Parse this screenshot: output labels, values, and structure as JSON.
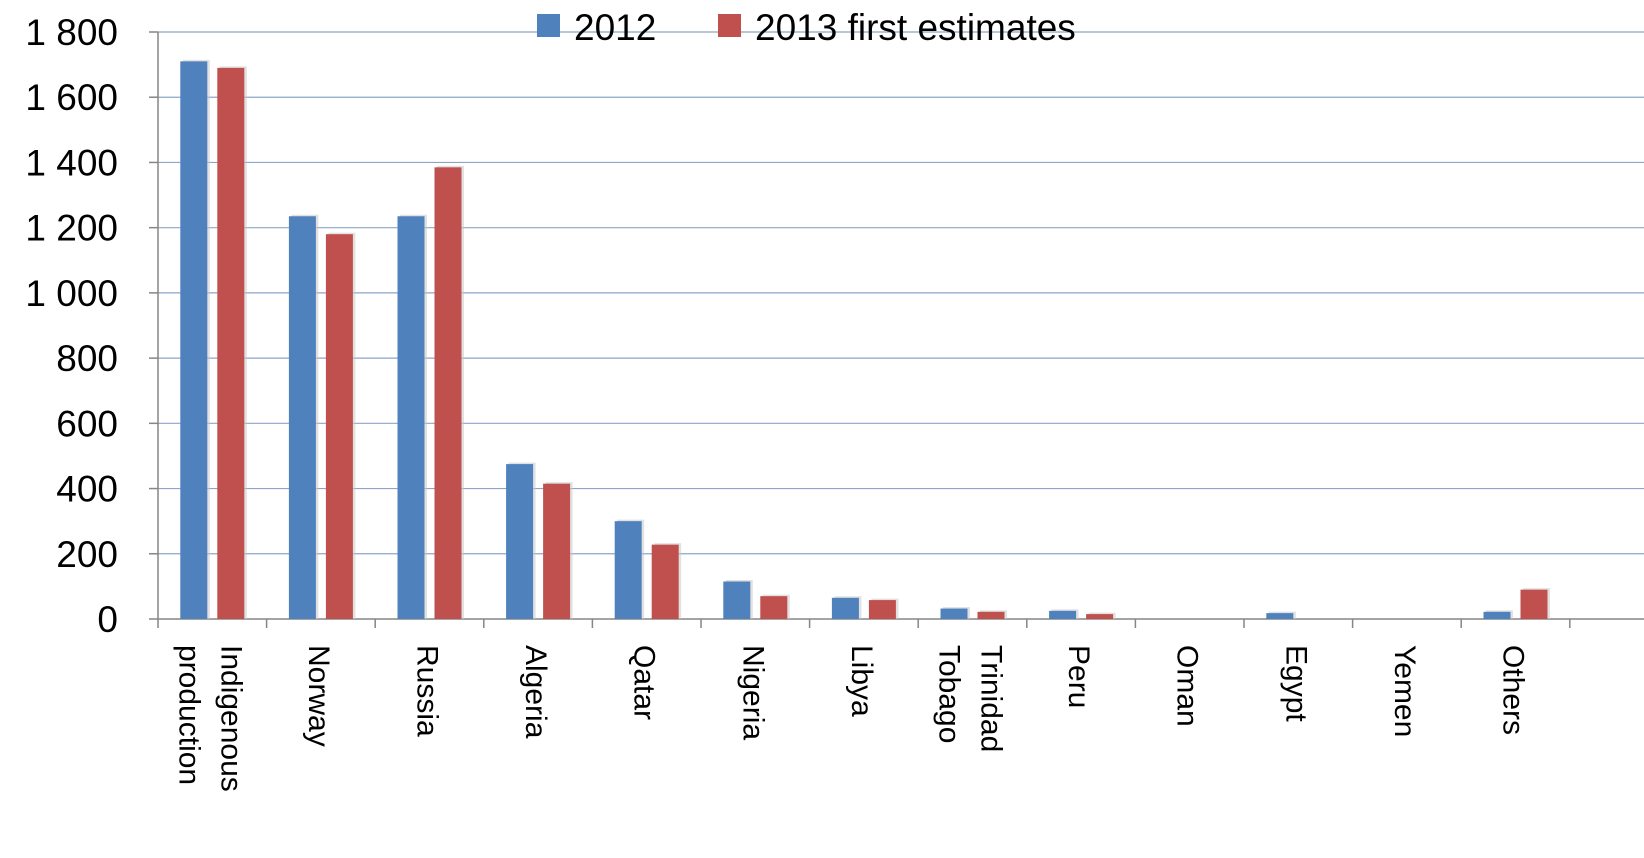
{
  "chart_data": {
    "type": "bar",
    "title": "",
    "xlabel": "",
    "ylabel": "",
    "ylim": [
      0,
      1800
    ],
    "yticks": [
      0,
      200,
      400,
      600,
      800,
      1000,
      1200,
      1400,
      1600,
      1800
    ],
    "ytick_labels": [
      "0",
      "200",
      "400",
      "600",
      "800",
      "1 000",
      "1 200",
      "1 400",
      "1 600",
      "1 800"
    ],
    "grid": "horizontal",
    "legend_position": "top-center",
    "categories": [
      [
        "Indigenous",
        "production"
      ],
      [
        "Norway"
      ],
      [
        "Russia"
      ],
      [
        "Algeria"
      ],
      [
        "Qatar"
      ],
      [
        "Nigeria"
      ],
      [
        "Libya"
      ],
      [
        "Trinidad",
        "Tobago"
      ],
      [
        "Peru"
      ],
      [
        "Oman"
      ],
      [
        "Egypt"
      ],
      [
        "Yemen"
      ],
      [
        "Others"
      ]
    ],
    "series": [
      {
        "name": "2012",
        "color": "#4F81BD",
        "values": [
          1710,
          1235,
          1235,
          475,
          300,
          115,
          65,
          32,
          25,
          0,
          18,
          0,
          22
        ]
      },
      {
        "name": "2013 first estimates",
        "color": "#C0504D",
        "values": [
          1690,
          1180,
          1385,
          415,
          228,
          70,
          58,
          22,
          15,
          0,
          0,
          0,
          90
        ]
      }
    ]
  }
}
